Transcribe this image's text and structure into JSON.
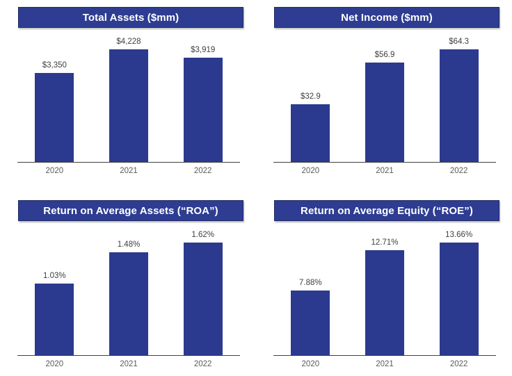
{
  "colors": {
    "bar": "#2b3a8e",
    "title_bg": "#2e3d92",
    "title_border": "#1b2a66",
    "title_text": "#ffffff",
    "data_label": "#404040",
    "tick_label": "#595959",
    "axis_line": "#404040",
    "background": "#ffffff"
  },
  "chart_data": [
    {
      "type": "bar",
      "title": "Total Assets ($mm)",
      "categories": [
        "2020",
        "2021",
        "2022"
      ],
      "values": [
        3350,
        4228,
        3919
      ],
      "point_labels": [
        "$3,350",
        "$4,228",
        "$3,919"
      ],
      "xlabel": "",
      "ylabel": "",
      "ylim": [
        0,
        4228
      ],
      "grid": false,
      "legend": "none"
    },
    {
      "type": "bar",
      "title": "Net Income ($mm)",
      "categories": [
        "2020",
        "2021",
        "2022"
      ],
      "values": [
        32.9,
        56.9,
        64.3
      ],
      "point_labels": [
        "$32.9",
        "$56.9",
        "$64.3"
      ],
      "xlabel": "",
      "ylabel": "",
      "ylim": [
        0,
        64.3
      ],
      "grid": false,
      "legend": "none"
    },
    {
      "type": "bar",
      "title": "Return on Average Assets (“ROA”)",
      "categories": [
        "2020",
        "2021",
        "2022"
      ],
      "values": [
        1.03,
        1.48,
        1.62
      ],
      "point_labels": [
        "1.03%",
        "1.48%",
        "1.62%"
      ],
      "xlabel": "",
      "ylabel": "",
      "ylim": [
        0,
        1.62
      ],
      "grid": false,
      "legend": "none"
    },
    {
      "type": "bar",
      "title": "Return on Average Equity (“ROE”)",
      "categories": [
        "2020",
        "2021",
        "2022"
      ],
      "values": [
        7.88,
        12.71,
        13.66
      ],
      "point_labels": [
        "7.88%",
        "12.71%",
        "13.66%"
      ],
      "xlabel": "",
      "ylabel": "",
      "ylim": [
        0,
        13.66
      ],
      "grid": false,
      "legend": "none"
    }
  ]
}
